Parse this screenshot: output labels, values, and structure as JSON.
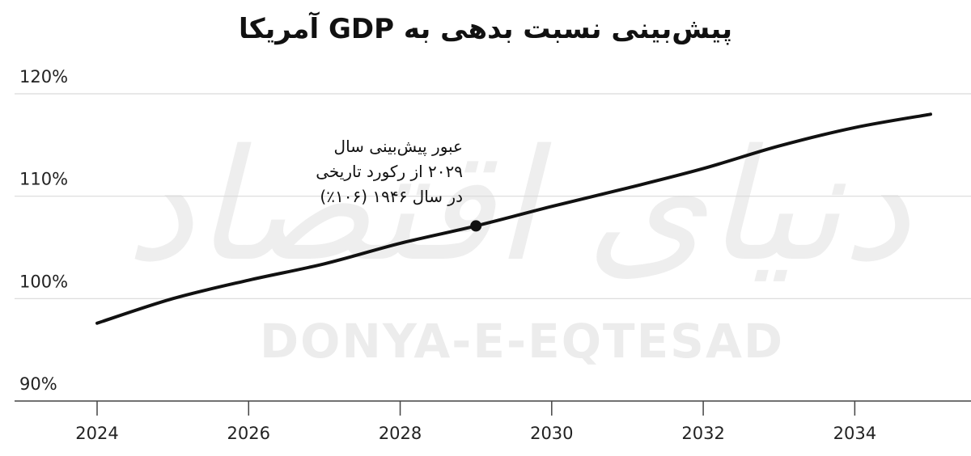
{
  "title": "پیش‌بینی نسبت بدهی به GDP آمریکا",
  "watermark": {
    "brand": "DONYA-E-EQTESAD",
    "script": "دنیای اقتصاد"
  },
  "colors": {
    "line": "#111111",
    "grid": "#d9d9d9",
    "axis": "#444444",
    "text": "#222222",
    "background": "#ffffff"
  },
  "chart_data": {
    "type": "line",
    "title": "پیش‌بینی نسبت بدهی به GDP آمریکا",
    "xlabel": "",
    "ylabel": "",
    "xlim": [
      2023,
      2035.5
    ],
    "ylim": [
      88,
      121
    ],
    "x_ticks": [
      2024,
      2026,
      2028,
      2030,
      2032,
      2034
    ],
    "x_tick_labels": [
      "2024",
      "2026",
      "2028",
      "2030",
      "2032",
      "2034"
    ],
    "y_ticks": [
      90,
      100,
      110,
      120
    ],
    "y_tick_labels": [
      "90%",
      "100%",
      "110%",
      "120%"
    ],
    "grid": "horizontal",
    "legend": "none",
    "series": [
      {
        "x": [
          2024,
          2025,
          2026,
          2027,
          2028,
          2029,
          2030,
          2031,
          2032,
          2033,
          2034,
          2035
        ],
        "values": [
          97.6,
          100.0,
          101.8,
          103.4,
          105.4,
          107.1,
          109.0,
          110.8,
          112.7,
          114.9,
          116.7,
          118.0
        ]
      }
    ],
    "annotations": [
      {
        "x": 2029,
        "y": 107.1,
        "lines": [
          "عبور پیش‌بینی سال",
          "۲۰۲۹ از رکورد تاریخی",
          "در سال ۱۹۴۶ (۱۰۶٪)"
        ]
      }
    ]
  }
}
